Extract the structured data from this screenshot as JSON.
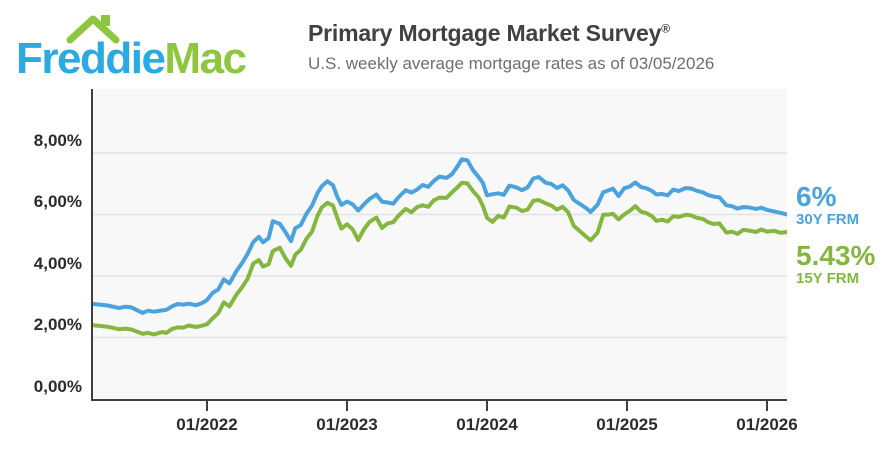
{
  "header": {
    "logo": {
      "word1": "Freddie",
      "word2": "Mac",
      "blue": "#29abe2",
      "green": "#8dc63f"
    },
    "title": "Primary Mortgage Market Survey",
    "title_mark": "®",
    "subtitle": "U.S. weekly average mortgage rates as of 03/05/2026"
  },
  "callouts": {
    "frm30": {
      "value": "6%",
      "label": "30Y FRM",
      "color": "#4aa3dc"
    },
    "frm15": {
      "value": "5.43%",
      "label": "15Y FRM",
      "color": "#85b640"
    }
  },
  "chart_data": {
    "type": "line",
    "title": "Primary Mortgage Market Survey",
    "subtitle": "U.S. weekly average mortgage rates as of 03/05/2026",
    "xlabel": "",
    "ylabel": "",
    "xlim": [
      2021.186,
      2026.143
    ],
    "ylim": [
      0,
      10.08
    ],
    "grid": true,
    "grid_color": "#e3e3e3",
    "plot_bg": "#f8f8f8",
    "axis_color": "#3f3f3f",
    "legend_position": "right",
    "x_ticks": [
      {
        "value": 2022,
        "label": "01/2022"
      },
      {
        "value": 2023,
        "label": "01/2023"
      },
      {
        "value": 2024,
        "label": "01/2024"
      },
      {
        "value": 2025,
        "label": "01/2025"
      },
      {
        "value": 2026,
        "label": "01/2026"
      }
    ],
    "y_ticks": [
      {
        "value": 8,
        "label": "8,00%"
      },
      {
        "value": 6,
        "label": "6,00%"
      },
      {
        "value": 4,
        "label": "4,00%"
      },
      {
        "value": 2,
        "label": "2,00%"
      },
      {
        "value": 0,
        "label": "0,00%"
      }
    ],
    "x": [
      2021.19,
      2021.29,
      2021.37,
      2021.42,
      2021.46,
      2021.54,
      2021.58,
      2021.62,
      2021.68,
      2021.71,
      2021.75,
      2021.79,
      2021.83,
      2021.87,
      2021.92,
      2021.96,
      2022.0,
      2022.04,
      2022.08,
      2022.12,
      2022.16,
      2022.21,
      2022.25,
      2022.29,
      2022.33,
      2022.37,
      2022.4,
      2022.44,
      2022.47,
      2022.52,
      2022.56,
      2022.6,
      2022.63,
      2022.67,
      2022.71,
      2022.75,
      2022.79,
      2022.82,
      2022.86,
      2022.9,
      2022.93,
      2022.96,
      2023.0,
      2023.04,
      2023.08,
      2023.12,
      2023.16,
      2023.21,
      2023.25,
      2023.29,
      2023.33,
      2023.37,
      2023.42,
      2023.46,
      2023.5,
      2023.54,
      2023.58,
      2023.62,
      2023.66,
      2023.71,
      2023.75,
      2023.79,
      2023.82,
      2023.86,
      2023.9,
      2023.94,
      2023.97,
      2024.0,
      2024.04,
      2024.08,
      2024.12,
      2024.16,
      2024.21,
      2024.25,
      2024.29,
      2024.33,
      2024.37,
      2024.42,
      2024.46,
      2024.5,
      2024.54,
      2024.58,
      2024.62,
      2024.66,
      2024.71,
      2024.74,
      2024.79,
      2024.83,
      2024.87,
      2024.9,
      2024.94,
      2024.98,
      2025.02,
      2025.06,
      2025.1,
      2025.14,
      2025.18,
      2025.21,
      2025.25,
      2025.29,
      2025.33,
      2025.37,
      2025.42,
      2025.46,
      2025.5,
      2025.54,
      2025.58,
      2025.62,
      2025.66,
      2025.71,
      2025.75,
      2025.79,
      2025.83,
      2025.87,
      2025.92,
      2025.96,
      2026.0,
      2026.05,
      2026.1,
      2026.14
    ],
    "series": [
      {
        "name": "30Y FRM",
        "color": "#4aa3dc",
        "final_value": "6%",
        "values": [
          3.09,
          3.04,
          2.96,
          3.0,
          2.98,
          2.8,
          2.87,
          2.84,
          2.88,
          2.9,
          3.01,
          3.09,
          3.07,
          3.1,
          3.05,
          3.11,
          3.22,
          3.45,
          3.56,
          3.89,
          3.76,
          4.16,
          4.42,
          4.72,
          5.1,
          5.27,
          5.1,
          5.23,
          5.78,
          5.7,
          5.43,
          5.13,
          5.55,
          5.66,
          6.02,
          6.29,
          6.7,
          6.92,
          7.08,
          6.95,
          6.58,
          6.31,
          6.42,
          6.33,
          6.13,
          6.32,
          6.5,
          6.65,
          6.42,
          6.39,
          6.35,
          6.57,
          6.79,
          6.71,
          6.81,
          6.96,
          6.9,
          7.09,
          7.23,
          7.19,
          7.31,
          7.57,
          7.79,
          7.76,
          7.44,
          7.22,
          7.03,
          6.62,
          6.66,
          6.69,
          6.64,
          6.94,
          6.88,
          6.79,
          6.88,
          7.17,
          7.22,
          7.03,
          6.99,
          6.86,
          6.95,
          6.78,
          6.47,
          6.35,
          6.2,
          6.08,
          6.32,
          6.72,
          6.79,
          6.84,
          6.6,
          6.85,
          6.91,
          7.04,
          6.89,
          6.85,
          6.76,
          6.65,
          6.67,
          6.62,
          6.81,
          6.76,
          6.86,
          6.84,
          6.77,
          6.72,
          6.63,
          6.58,
          6.56,
          6.3,
          6.27,
          6.19,
          6.24,
          6.23,
          6.18,
          6.22,
          6.15,
          6.1,
          6.05,
          6.0
        ]
      },
      {
        "name": "15Y FRM",
        "color": "#85b640",
        "final_value": "5.43%",
        "values": [
          2.4,
          2.35,
          2.27,
          2.29,
          2.26,
          2.12,
          2.15,
          2.1,
          2.18,
          2.15,
          2.28,
          2.33,
          2.32,
          2.39,
          2.34,
          2.38,
          2.43,
          2.62,
          2.79,
          3.14,
          3.01,
          3.39,
          3.63,
          3.91,
          4.4,
          4.52,
          4.31,
          4.38,
          4.81,
          4.92,
          4.58,
          4.33,
          4.69,
          4.85,
          5.21,
          5.44,
          5.96,
          6.23,
          6.38,
          6.29,
          5.9,
          5.54,
          5.68,
          5.52,
          5.17,
          5.51,
          5.76,
          5.9,
          5.56,
          5.71,
          5.75,
          5.97,
          6.18,
          6.07,
          6.24,
          6.3,
          6.25,
          6.46,
          6.55,
          6.54,
          6.72,
          6.89,
          7.03,
          7.01,
          6.76,
          6.56,
          6.29,
          5.89,
          5.76,
          5.96,
          5.9,
          6.26,
          6.22,
          6.11,
          6.16,
          6.44,
          6.47,
          6.36,
          6.29,
          6.16,
          6.25,
          6.07,
          5.63,
          5.47,
          5.27,
          5.16,
          5.41,
          5.99,
          6.0,
          6.02,
          5.84,
          6.0,
          6.12,
          6.27,
          6.09,
          6.04,
          5.94,
          5.79,
          5.83,
          5.77,
          5.94,
          5.92,
          5.99,
          5.97,
          5.89,
          5.86,
          5.75,
          5.69,
          5.71,
          5.41,
          5.44,
          5.37,
          5.5,
          5.48,
          5.43,
          5.51,
          5.44,
          5.47,
          5.4,
          5.43
        ]
      }
    ]
  }
}
